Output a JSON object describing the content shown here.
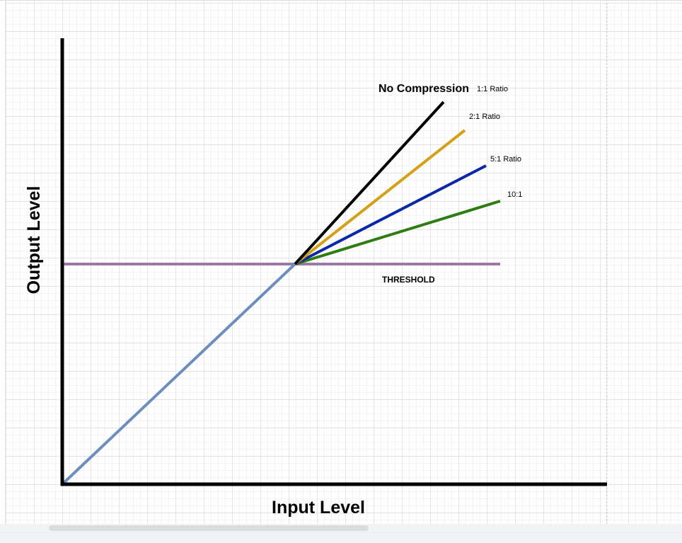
{
  "diagram": {
    "y_axis_label": "Output Level",
    "x_axis_label": "Input Level",
    "threshold_label": "THRESHOLD",
    "lines": [
      {
        "key": "no-compression",
        "title": "No Compression",
        "label": "1:1 Ratio",
        "color": "#000000"
      },
      {
        "key": "ratio-2",
        "label": "2:1 Ratio",
        "color": "#d4a017"
      },
      {
        "key": "ratio-5",
        "label": "5:1 Ratio",
        "color": "#0b27a8"
      },
      {
        "key": "ratio-10",
        "label": "10:1",
        "color": "#2e7d12"
      }
    ],
    "colors": {
      "axes": "#000000",
      "threshold": "#9b7aa8",
      "below_threshold": "#6c8ebf"
    }
  }
}
